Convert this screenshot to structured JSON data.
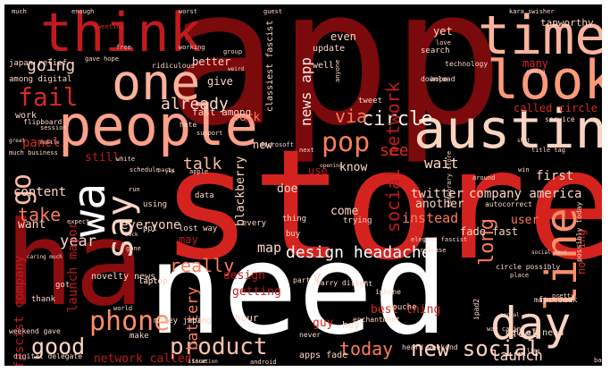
{
  "words": [
    {
      "text": "app",
      "color": "#7a0a0c"
    },
    {
      "text": "store",
      "color": "#d4231f"
    },
    {
      "text": "ha",
      "color": "#8b0d10"
    },
    {
      "text": "need",
      "color": "#ffffff"
    },
    {
      "text": "austin",
      "color": "#fcd3c0"
    },
    {
      "text": "people",
      "color": "#fca08a"
    },
    {
      "text": "think",
      "color": "#c11a1d"
    },
    {
      "text": "time",
      "color": "#fbb49c"
    },
    {
      "text": "look",
      "color": "#fc9a7a"
    },
    {
      "text": "one",
      "color": "#fbb19a"
    },
    {
      "text": "say",
      "color": "#fcd5c5"
    },
    {
      "text": "line",
      "color": "#fb8e6b"
    },
    {
      "text": "day",
      "color": "#fcd3c0"
    },
    {
      "text": "wa",
      "color": "#ffffff"
    },
    {
      "text": "phone",
      "color": "#fb8e6b"
    },
    {
      "text": "fail",
      "color": "#d42a22"
    },
    {
      "text": "pop",
      "color": "#fb7c5c"
    },
    {
      "text": "design headache",
      "color": "#ffffff"
    },
    {
      "text": "product",
      "color": "#fcc2ab"
    },
    {
      "text": "good",
      "color": "#fcd5c5"
    },
    {
      "text": "new social",
      "color": "#fcd3c0"
    },
    {
      "text": "circle",
      "color": "#fcebe3"
    },
    {
      "text": "social network",
      "color": "#bd1a1d"
    },
    {
      "text": "long",
      "color": "#fb7c5c"
    },
    {
      "text": "today",
      "color": "#fb7c5c"
    },
    {
      "text": "go",
      "color": "#fcbba1"
    },
    {
      "text": "really",
      "color": "#fb7c5c"
    },
    {
      "text": "going",
      "color": "#fcd5c5"
    },
    {
      "text": "via",
      "color": "#fb7c5c"
    },
    {
      "text": "already",
      "color": "#fcd5c5"
    },
    {
      "text": "news app",
      "color": "#fcebe3"
    },
    {
      "text": "talk",
      "color": "#fcbba1"
    },
    {
      "text": "see",
      "color": "#d42a22"
    },
    {
      "text": "wait",
      "color": "#fcd5c5"
    },
    {
      "text": "year",
      "color": "#fcd5c5"
    },
    {
      "text": "take",
      "color": "#fb7c5c"
    },
    {
      "text": "battery",
      "color": "#fb7c5c"
    },
    {
      "text": "launch",
      "color": "#fcd5c5"
    },
    {
      "text": "v",
      "color": "#fcd5c5"
    },
    {
      "text": "map",
      "color": "#fcd5c5"
    },
    {
      "text": "twitter",
      "color": "#fcd5c5"
    },
    {
      "text": "company america",
      "color": "#fcd5c5"
    },
    {
      "text": "instead",
      "color": "#fb7c5c"
    },
    {
      "text": "first",
      "color": "#fcd5c5"
    },
    {
      "text": "content",
      "color": "#fcd5c5"
    },
    {
      "text": "everyone",
      "color": "#fcd5c5"
    },
    {
      "text": "want",
      "color": "#fcd5c5"
    },
    {
      "text": "panel",
      "color": "#d42a22"
    },
    {
      "text": "called circle",
      "color": "#d42a22"
    },
    {
      "text": "many",
      "color": "#d42a22"
    },
    {
      "text": "tapworthy",
      "color": "#fcd5c5"
    },
    {
      "text": "fascist company",
      "color": "#bd1a1d"
    },
    {
      "text": "launch major",
      "color": "#bd1a1d"
    },
    {
      "text": "network called",
      "color": "#bd1a1d"
    },
    {
      "text": "getting",
      "color": "#bd1a1d"
    },
    {
      "text": "blackberry",
      "color": "#fcd5c5"
    },
    {
      "text": "know",
      "color": "#fcd5c5"
    },
    {
      "text": "doe",
      "color": "#fcd5c5"
    },
    {
      "text": "another",
      "color": "#fcd5c5"
    },
    {
      "text": "user",
      "color": "#fb7c5c"
    },
    {
      "text": "come",
      "color": "#fcd5c5"
    },
    {
      "text": "suck",
      "color": "#fb7c5c"
    },
    {
      "text": "new",
      "color": "#fcd5c5"
    },
    {
      "text": "nothing",
      "color": "#d42a22"
    },
    {
      "text": "even",
      "color": "#fcd5c5"
    },
    {
      "text": "yet",
      "color": "#fcd5c5"
    },
    {
      "text": "better",
      "color": "#fcd5c5"
    },
    {
      "text": "give",
      "color": "#fcd5c5"
    },
    {
      "text": "classiest fascist",
      "color": "#fcd5c5"
    },
    {
      "text": "still",
      "color": "#bd1a1d"
    },
    {
      "text": "fade fast",
      "color": "#fcd5c5"
    },
    {
      "text": "guy",
      "color": "#d42a22"
    },
    {
      "text": "hey",
      "color": "#fcd5c5"
    },
    {
      "text": "feel",
      "color": "#fcd5c5"
    },
    {
      "text": "design",
      "color": "#bd1a1d"
    },
    {
      "text": "apps fade",
      "color": "#fcd5c5"
    },
    {
      "text": "relief need",
      "color": "#fcd5c5"
    },
    {
      "text": "hour",
      "color": "#fcd5c5"
    },
    {
      "text": "best thing",
      "color": "#d42a22"
    },
    {
      "text": "may",
      "color": "#bd1a1d"
    },
    {
      "text": "use",
      "color": "#bd1a1d"
    },
    {
      "text": "work",
      "color": "#fcd5c5"
    },
    {
      "text": "fast among",
      "color": "#fcd5c5"
    },
    {
      "text": "novelty news",
      "color": "#fcd5c5"
    },
    {
      "text": "laptop",
      "color": "#fcd5c5"
    },
    {
      "text": "iphone",
      "color": "#fcd5c5"
    },
    {
      "text": "facebook",
      "color": "#fcd5c5"
    },
    {
      "text": "japan relief",
      "color": "#fcd5c5"
    },
    {
      "text": "among digital",
      "color": "#fcd5c5"
    },
    {
      "text": "digital delegate",
      "color": "#fcd5c5"
    },
    {
      "text": "heard weekend",
      "color": "#fcd5c5"
    },
    {
      "text": "much",
      "color": "#fcd5c5"
    },
    {
      "text": "enough",
      "color": "#fcd5c5"
    },
    {
      "text": "worst",
      "color": "#fcd5c5"
    },
    {
      "text": "guest",
      "color": "#fcd5c5"
    },
    {
      "text": "tweeting",
      "color": "#d42a22"
    },
    {
      "text": "group",
      "color": "#fcd5c5"
    },
    {
      "text": "working",
      "color": "#fcd5c5"
    },
    {
      "text": "ridiculous",
      "color": "#fcd5c5"
    },
    {
      "text": "update",
      "color": "#fcd5c5"
    },
    {
      "text": "well",
      "color": "#fcd5c5"
    },
    {
      "text": "search",
      "color": "#fcd5c5"
    },
    {
      "text": "technology",
      "color": "#fcd5c5"
    },
    {
      "text": "download",
      "color": "#fcd5c5"
    },
    {
      "text": "tweet",
      "color": "#fcd5c5"
    },
    {
      "text": "service",
      "color": "#fcd5c5"
    },
    {
      "text": "title tag",
      "color": "#fcd5c5"
    },
    {
      "text": "bad",
      "color": "#fcd5c5"
    },
    {
      "text": "flipboard",
      "color": "#fcd5c5"
    },
    {
      "text": "hate",
      "color": "#fcd5c5"
    },
    {
      "text": "laptop",
      "color": "#fcd5c5"
    },
    {
      "text": "session",
      "color": "#fcd5c5"
    },
    {
      "text": "support",
      "color": "#fcd5c5"
    },
    {
      "text": "microsoft",
      "color": "#fcd5c5"
    },
    {
      "text": "next",
      "color": "#fcd5c5"
    },
    {
      "text": "white",
      "color": "#fcd5c5"
    },
    {
      "text": "schedule",
      "color": "#fcd5c5"
    },
    {
      "text": "apple",
      "color": "#fcd5c5"
    },
    {
      "text": "around",
      "color": "#fcd5c5"
    },
    {
      "text": "data",
      "color": "#fcd5c5"
    },
    {
      "text": "using",
      "color": "#fcd5c5"
    },
    {
      "text": "ppl",
      "color": "#fcd5c5"
    },
    {
      "text": "lost way",
      "color": "#fcd5c5"
    },
    {
      "text": "every",
      "color": "#fcd5c5"
    },
    {
      "text": "thing",
      "color": "#fcd5c5"
    },
    {
      "text": "trying",
      "color": "#fcd5c5"
    },
    {
      "text": "buy",
      "color": "#fcd5c5"
    },
    {
      "text": "part",
      "color": "#fcd5c5"
    },
    {
      "text": "barry diller",
      "color": "#fcd5c5"
    },
    {
      "text": "right",
      "color": "#fcd5c5"
    },
    {
      "text": "douche",
      "color": "#fcd5c5"
    },
    {
      "text": "enchantment",
      "color": "#fcd5c5"
    },
    {
      "text": "money japan",
      "color": "#fcd5c5"
    },
    {
      "text": "weekend gave",
      "color": "#fcd5c5"
    },
    {
      "text": "thank",
      "color": "#fcd5c5"
    },
    {
      "text": "got",
      "color": "#fcd5c5"
    },
    {
      "text": "circle possibly",
      "color": "#fcd5c5"
    },
    {
      "text": "temporary store",
      "color": "#fcd5c5"
    },
    {
      "text": "autocorrect",
      "color": "#fcd5c5"
    },
    {
      "text": "elegant fascist",
      "color": "#fcd5c5"
    },
    {
      "text": "release",
      "color": "#fcd5c5"
    },
    {
      "text": "never",
      "color": "#fcd5c5"
    },
    {
      "text": "opening",
      "color": "#fcd5c5"
    },
    {
      "text": "kara swisher",
      "color": "#fcd5c5"
    },
    {
      "text": "love",
      "color": "#fcd5c5"
    },
    {
      "text": "shit",
      "color": "#fcd5c5"
    },
    {
      "text": "hope",
      "color": "#fcd5c5"
    },
    {
      "text": "ipad2",
      "color": "#fcd5c5"
    },
    {
      "text": "place",
      "color": "#fcd5c5"
    },
    {
      "text": "pretty",
      "color": "#fcd5c5"
    },
    {
      "text": "party",
      "color": "#fcd5c5"
    },
    {
      "text": "run",
      "color": "#fcd5c5"
    },
    {
      "text": "yes",
      "color": "#fcd5c5"
    },
    {
      "text": "world",
      "color": "#fcd5c5"
    },
    {
      "text": "gone",
      "color": "#fcd5c5"
    },
    {
      "text": "bing",
      "color": "#fcd5c5"
    },
    {
      "text": "make",
      "color": "#fcd5c5"
    },
    {
      "text": "issue",
      "color": "#fcd5c5"
    },
    {
      "text": "location",
      "color": "#fcd5c5"
    },
    {
      "text": "android",
      "color": "#fcd5c5"
    },
    {
      "text": "caring much",
      "color": "#fcd5c5"
    },
    {
      "text": "way caring",
      "color": "#fcd5c5"
    },
    {
      "text": "major new",
      "color": "#fcd5c5"
    },
    {
      "text": "possibly today",
      "color": "#fcd5c5"
    },
    {
      "text": "social news",
      "color": "#fcd5c5"
    },
    {
      "text": "win",
      "color": "#fcd5c5"
    },
    {
      "text": "back",
      "color": "#fcd5c5"
    },
    {
      "text": "mobile",
      "color": "#fcd5c5"
    },
    {
      "text": "much business",
      "color": "#fcd5c5"
    },
    {
      "text": "expect",
      "color": "#fcd5c5"
    },
    {
      "text": "great",
      "color": "#fcd5c5"
    },
    {
      "text": "gave hope",
      "color": "#fcd5c5"
    },
    {
      "text": "weird",
      "color": "#fcd5c5"
    },
    {
      "text": "anyone",
      "color": "#fcd5c5"
    },
    {
      "text": "free",
      "color": "#fcd5c5"
    },
    {
      "text": "coming",
      "color": "#fcd5c5"
    },
    {
      "text": "social",
      "color": "#fcd5c5"
    },
    {
      "text": "line",
      "color": "#fcd5c5"
    }
  ]
}
